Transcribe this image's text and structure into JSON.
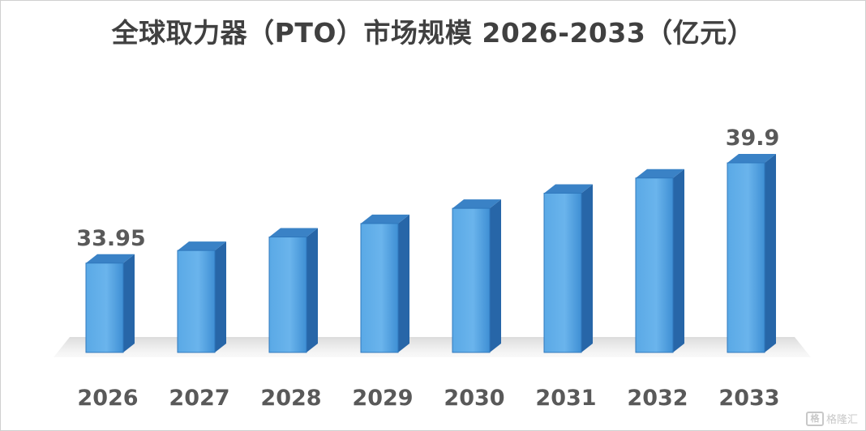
{
  "chart_data": {
    "type": "bar",
    "title": "全球取力器（PTO）市场规模 2026-2033（亿元）",
    "categories": [
      "2026",
      "2027",
      "2028",
      "2029",
      "2030",
      "2031",
      "2032",
      "2033"
    ],
    "values": [
      33.95,
      34.7,
      35.5,
      36.3,
      37.2,
      38.1,
      39.0,
      39.9
    ],
    "data_labels": [
      {
        "index": 0,
        "text": "33.95"
      },
      {
        "index": 7,
        "text": "39.9"
      }
    ],
    "xlabel": "",
    "ylabel": "",
    "style": "3d-column",
    "bar_color": "#4a9fe0",
    "bar_side_color": "#2766a8",
    "bar_top_color": "#3a82c6",
    "grid": false,
    "legend": "none"
  },
  "watermark": {
    "logo": "格",
    "text": "格隆汇"
  }
}
